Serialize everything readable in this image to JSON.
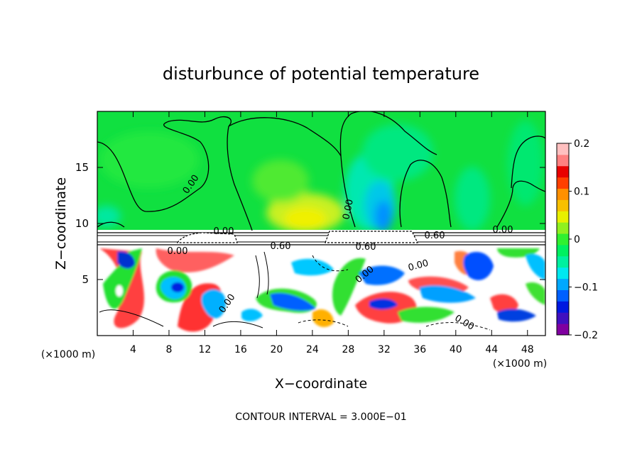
{
  "chart_data": {
    "type": "heatmap",
    "title": "disturbunce of potential temperature",
    "xlabel": "X−coordinate",
    "ylabel": "Z−coordinate",
    "xunit": "(×1000 m)",
    "yunit": "(×1000 m)",
    "xlim": [
      0,
      50
    ],
    "ylim": [
      0,
      20
    ],
    "xticks": [
      4,
      8,
      12,
      16,
      20,
      24,
      28,
      32,
      36,
      40,
      44,
      48
    ],
    "yticks": [
      5,
      10,
      15
    ],
    "footer": "CONTOUR INTERVAL = 3.000E−01",
    "colorbar": {
      "min": -0.2,
      "max": 0.2,
      "ticks": [
        "0.2",
        "0.1",
        "0",
        "−0.1",
        "−0.2"
      ],
      "colors": [
        "#8000a0",
        "#4010c0",
        "#0018e0",
        "#0060ff",
        "#00a8ff",
        "#00e8f0",
        "#00f0a0",
        "#00f060",
        "#30f030",
        "#90f020",
        "#e8f000",
        "#f8c000",
        "#ff9000",
        "#ff4000",
        "#e80000",
        "#ff8080",
        "#ffc0c0"
      ]
    },
    "contour_labels": [
      "0.00",
      "0.00",
      "0.00",
      "0.00",
      "0.00",
      "0.60",
      "0.60",
      "0.60",
      "0.00",
      "0.00",
      "0.00",
      "0.00",
      "0.00",
      "0.00",
      "0.00"
    ]
  }
}
